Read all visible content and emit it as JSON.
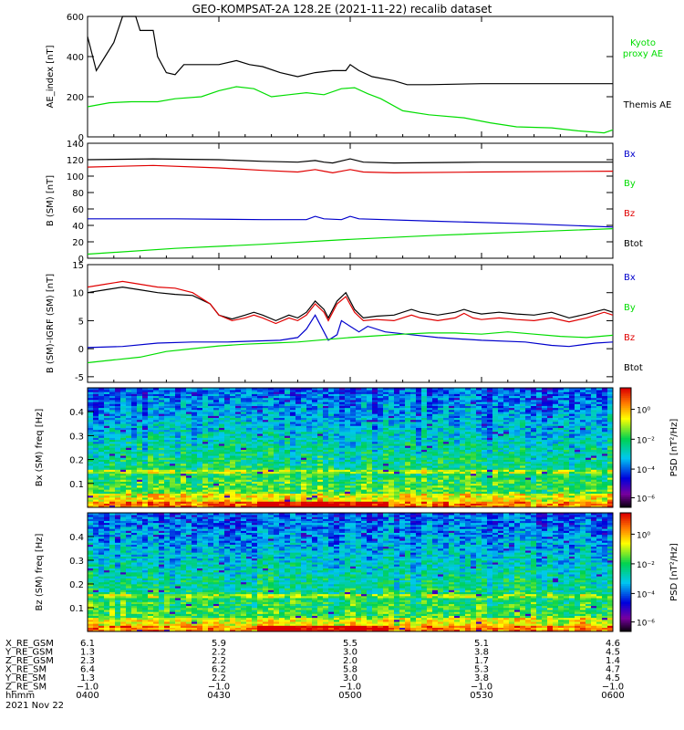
{
  "title": "GEO-KOMPSAT-2A 128.2E (2021-11-22) recalib dataset",
  "colors": {
    "black": "#000000",
    "red": "#e00000",
    "green": "#00dd00",
    "blue": "#0000cc"
  },
  "chart_data": [
    {
      "type": "line",
      "ylabel": "AE_index [nT]",
      "ylim": [
        0,
        600
      ],
      "yticks": [
        "0",
        "200",
        "400",
        "600"
      ],
      "x": [
        "0400",
        "0430",
        "0500",
        "0530",
        "0600"
      ],
      "legend": [
        {
          "label": "Kyoto proxy AE",
          "color": "#00dd00"
        },
        {
          "label": "Themis AE",
          "color": "#000000"
        }
      ],
      "series": [
        {
          "name": "Themis AE",
          "color": "#000000",
          "points": [
            [
              0,
              500
            ],
            [
              2,
              330
            ],
            [
              4,
              400
            ],
            [
              6,
              470
            ],
            [
              8,
              600
            ],
            [
              11,
              600
            ],
            [
              12,
              530
            ],
            [
              15,
              530
            ],
            [
              16,
              400
            ],
            [
              18,
              320
            ],
            [
              20,
              310
            ],
            [
              22,
              360
            ],
            [
              26,
              360
            ],
            [
              30,
              360
            ],
            [
              34,
              380
            ],
            [
              37,
              360
            ],
            [
              40,
              350
            ],
            [
              44,
              320
            ],
            [
              48,
              300
            ],
            [
              52,
              320
            ],
            [
              56,
              330
            ],
            [
              59,
              330
            ],
            [
              60,
              360
            ],
            [
              62,
              330
            ],
            [
              65,
              300
            ],
            [
              70,
              280
            ],
            [
              73,
              260
            ],
            [
              78,
              260
            ],
            [
              90,
              265
            ],
            [
              110,
              265
            ],
            [
              120,
              265
            ]
          ]
        },
        {
          "name": "Kyoto proxy AE",
          "color": "#00dd00",
          "points": [
            [
              0,
              150
            ],
            [
              5,
              170
            ],
            [
              10,
              175
            ],
            [
              16,
              175
            ],
            [
              20,
              190
            ],
            [
              26,
              200
            ],
            [
              30,
              230
            ],
            [
              34,
              250
            ],
            [
              38,
              240
            ],
            [
              42,
              200
            ],
            [
              46,
              210
            ],
            [
              50,
              220
            ],
            [
              54,
              210
            ],
            [
              58,
              240
            ],
            [
              61,
              245
            ],
            [
              64,
              215
            ],
            [
              67,
              190
            ],
            [
              72,
              130
            ],
            [
              78,
              110
            ],
            [
              86,
              95
            ],
            [
              92,
              70
            ],
            [
              98,
              50
            ],
            [
              106,
              45
            ],
            [
              112,
              30
            ],
            [
              118,
              20
            ],
            [
              120,
              35
            ]
          ]
        }
      ]
    },
    {
      "type": "line",
      "ylabel": "B (SM) [nT]",
      "ylim": [
        0,
        140
      ],
      "yticks": [
        "0",
        "20",
        "40",
        "60",
        "80",
        "100",
        "120",
        "140"
      ],
      "x": [
        "0400",
        "0430",
        "0500",
        "0530",
        "0600"
      ],
      "legend": [
        {
          "label": "Bx",
          "color": "#0000cc"
        },
        {
          "label": "By",
          "color": "#00dd00"
        },
        {
          "label": "Bz",
          "color": "#e00000"
        },
        {
          "label": "Btot",
          "color": "#000000"
        }
      ],
      "series": [
        {
          "name": "Btot",
          "color": "#000000",
          "points": [
            [
              0,
              120
            ],
            [
              15,
              121
            ],
            [
              30,
              120
            ],
            [
              40,
              118
            ],
            [
              48,
              117
            ],
            [
              52,
              119
            ],
            [
              54,
              117
            ],
            [
              56,
              116
            ],
            [
              60,
              121
            ],
            [
              63,
              117
            ],
            [
              70,
              116
            ],
            [
              90,
              117
            ],
            [
              120,
              117
            ]
          ]
        },
        {
          "name": "Bz",
          "color": "#e00000",
          "points": [
            [
              0,
              111
            ],
            [
              15,
              113
            ],
            [
              30,
              110
            ],
            [
              40,
              107
            ],
            [
              48,
              105
            ],
            [
              52,
              108
            ],
            [
              54,
              106
            ],
            [
              56,
              104
            ],
            [
              60,
              108
            ],
            [
              63,
              105
            ],
            [
              70,
              104
            ],
            [
              90,
              105
            ],
            [
              120,
              106
            ]
          ]
        },
        {
          "name": "Bx",
          "color": "#0000cc",
          "points": [
            [
              0,
              48
            ],
            [
              20,
              48
            ],
            [
              40,
              47
            ],
            [
              50,
              47
            ],
            [
              52,
              51
            ],
            [
              54,
              48
            ],
            [
              58,
              47
            ],
            [
              60,
              51
            ],
            [
              62,
              48
            ],
            [
              80,
              45
            ],
            [
              100,
              42
            ],
            [
              120,
              38
            ]
          ]
        },
        {
          "name": "By",
          "color": "#00dd00",
          "points": [
            [
              0,
              5
            ],
            [
              20,
              12
            ],
            [
              40,
              17
            ],
            [
              60,
              23
            ],
            [
              80,
              28
            ],
            [
              100,
              32
            ],
            [
              120,
              36
            ]
          ]
        }
      ]
    },
    {
      "type": "line",
      "ylabel": "B (SM)-IGRF (SM) [nT]",
      "ylim": [
        -6,
        15
      ],
      "yticks": [
        "-5",
        "0",
        "5",
        "10",
        "15"
      ],
      "x": [
        "0400",
        "0430",
        "0500",
        "0530",
        "0600"
      ],
      "legend": [
        {
          "label": "Bx",
          "color": "#0000cc"
        },
        {
          "label": "By",
          "color": "#00dd00"
        },
        {
          "label": "Bz",
          "color": "#e00000"
        },
        {
          "label": "Btot",
          "color": "#000000"
        }
      ],
      "series": [
        {
          "name": "Btot",
          "color": "#000000",
          "points": [
            [
              0,
              10
            ],
            [
              4,
              10.5
            ],
            [
              8,
              11
            ],
            [
              12,
              10.5
            ],
            [
              16,
              10
            ],
            [
              20,
              9.7
            ],
            [
              24,
              9.5
            ],
            [
              28,
              8
            ],
            [
              30,
              6
            ],
            [
              33,
              5.3
            ],
            [
              36,
              6
            ],
            [
              38,
              6.5
            ],
            [
              40,
              6
            ],
            [
              43,
              5
            ],
            [
              46,
              6
            ],
            [
              48,
              5.5
            ],
            [
              50,
              6.5
            ],
            [
              52,
              8.5
            ],
            [
              54,
              7
            ],
            [
              55,
              5.5
            ],
            [
              57,
              8.5
            ],
            [
              59,
              10
            ],
            [
              61,
              7
            ],
            [
              63,
              5.5
            ],
            [
              66,
              5.8
            ],
            [
              70,
              6
            ],
            [
              74,
              7
            ],
            [
              76,
              6.5
            ],
            [
              80,
              6
            ],
            [
              84,
              6.5
            ],
            [
              86,
              7
            ],
            [
              88,
              6.5
            ],
            [
              90,
              6.2
            ],
            [
              94,
              6.5
            ],
            [
              98,
              6.2
            ],
            [
              102,
              6
            ],
            [
              106,
              6.5
            ],
            [
              110,
              5.5
            ],
            [
              114,
              6.2
            ],
            [
              118,
              7
            ],
            [
              120,
              6.5
            ]
          ]
        },
        {
          "name": "Bz",
          "color": "#e00000",
          "points": [
            [
              0,
              11
            ],
            [
              4,
              11.5
            ],
            [
              8,
              12
            ],
            [
              12,
              11.5
            ],
            [
              16,
              11
            ],
            [
              20,
              10.8
            ],
            [
              24,
              10
            ],
            [
              28,
              8
            ],
            [
              30,
              6
            ],
            [
              33,
              5
            ],
            [
              36,
              5.5
            ],
            [
              38,
              6
            ],
            [
              40,
              5.5
            ],
            [
              43,
              4.5
            ],
            [
              46,
              5.5
            ],
            [
              48,
              5
            ],
            [
              50,
              6
            ],
            [
              52,
              8
            ],
            [
              54,
              6.5
            ],
            [
              55,
              5
            ],
            [
              57,
              8
            ],
            [
              59,
              9.3
            ],
            [
              61,
              6.5
            ],
            [
              63,
              5
            ],
            [
              66,
              5.2
            ],
            [
              70,
              5
            ],
            [
              74,
              6
            ],
            [
              76,
              5.5
            ],
            [
              80,
              5
            ],
            [
              84,
              5.5
            ],
            [
              86,
              6.3
            ],
            [
              88,
              5.5
            ],
            [
              90,
              5.2
            ],
            [
              94,
              5.5
            ],
            [
              98,
              5.2
            ],
            [
              102,
              5
            ],
            [
              106,
              5.5
            ],
            [
              110,
              4.8
            ],
            [
              114,
              5.5
            ],
            [
              118,
              6.5
            ],
            [
              120,
              6
            ]
          ]
        },
        {
          "name": "Bx",
          "color": "#0000cc",
          "points": [
            [
              0,
              0.2
            ],
            [
              8,
              0.4
            ],
            [
              16,
              1
            ],
            [
              24,
              1.2
            ],
            [
              32,
              1.2
            ],
            [
              40,
              1.4
            ],
            [
              44,
              1.5
            ],
            [
              48,
              2
            ],
            [
              50,
              3.5
            ],
            [
              52,
              6
            ],
            [
              54,
              3
            ],
            [
              55,
              1.5
            ],
            [
              57,
              2.5
            ],
            [
              58,
              5
            ],
            [
              60,
              4
            ],
            [
              62,
              3
            ],
            [
              64,
              4
            ],
            [
              68,
              3
            ],
            [
              74,
              2.5
            ],
            [
              80,
              2
            ],
            [
              90,
              1.5
            ],
            [
              100,
              1.2
            ],
            [
              106,
              0.6
            ],
            [
              110,
              0.4
            ],
            [
              116,
              1
            ],
            [
              120,
              1.2
            ]
          ]
        },
        {
          "name": "By",
          "color": "#00dd00",
          "points": [
            [
              0,
              -2.5
            ],
            [
              6,
              -2
            ],
            [
              12,
              -1.5
            ],
            [
              18,
              -0.5
            ],
            [
              24,
              0
            ],
            [
              30,
              0.5
            ],
            [
              36,
              0.8
            ],
            [
              42,
              1
            ],
            [
              48,
              1.2
            ],
            [
              54,
              1.6
            ],
            [
              60,
              2
            ],
            [
              66,
              2.3
            ],
            [
              72,
              2.6
            ],
            [
              78,
              2.8
            ],
            [
              84,
              2.8
            ],
            [
              90,
              2.6
            ],
            [
              96,
              3
            ],
            [
              102,
              2.6
            ],
            [
              108,
              2.2
            ],
            [
              114,
              2
            ],
            [
              120,
              2.4
            ]
          ]
        }
      ]
    },
    {
      "type": "heatmap",
      "ylabel": "Bx (SM) freq [Hz]",
      "yticks": [
        "0.1",
        "0.2",
        "0.3",
        "0.4"
      ],
      "ylim": [
        0,
        0.5
      ],
      "colorbar": {
        "label": "PSD [nT²/Hz]",
        "ticks": [
          "10⁰",
          "10⁻²",
          "10⁻⁴",
          "10⁻⁶"
        ]
      }
    },
    {
      "type": "heatmap",
      "ylabel": "Bz (SM) freq [Hz]",
      "yticks": [
        "0.1",
        "0.2",
        "0.3",
        "0.4"
      ],
      "ylim": [
        0,
        0.5
      ],
      "colorbar": {
        "label": "PSD [nT²/Hz]",
        "ticks": [
          "10⁰",
          "10⁻²",
          "10⁻⁴",
          "10⁻⁶"
        ]
      }
    }
  ],
  "ephemeris": {
    "labels": [
      "X_RE_GSM",
      "Y_RE_GSM",
      "Z_RE_GSM",
      "X_RE_SM",
      "Y_RE_SM",
      "Z_RE_SM",
      "hhmm"
    ],
    "columns": [
      [
        "6.1",
        "1.3",
        "2.3",
        "6.4",
        "1.3",
        "−1.0",
        "0400"
      ],
      [
        "5.9",
        "2.2",
        "2.2",
        "6.2",
        "2.2",
        "−1.0",
        "0430"
      ],
      [
        "5.5",
        "3.0",
        "2.0",
        "5.8",
        "3.0",
        "−1.0",
        "0500"
      ],
      [
        "5.1",
        "3.8",
        "1.7",
        "5.3",
        "3.8",
        "−1.0",
        "0530"
      ],
      [
        "4.6",
        "4.5",
        "1.4",
        "4.7",
        "4.5",
        "−1.0",
        "0600"
      ]
    ],
    "date": "2021 Nov 22"
  }
}
